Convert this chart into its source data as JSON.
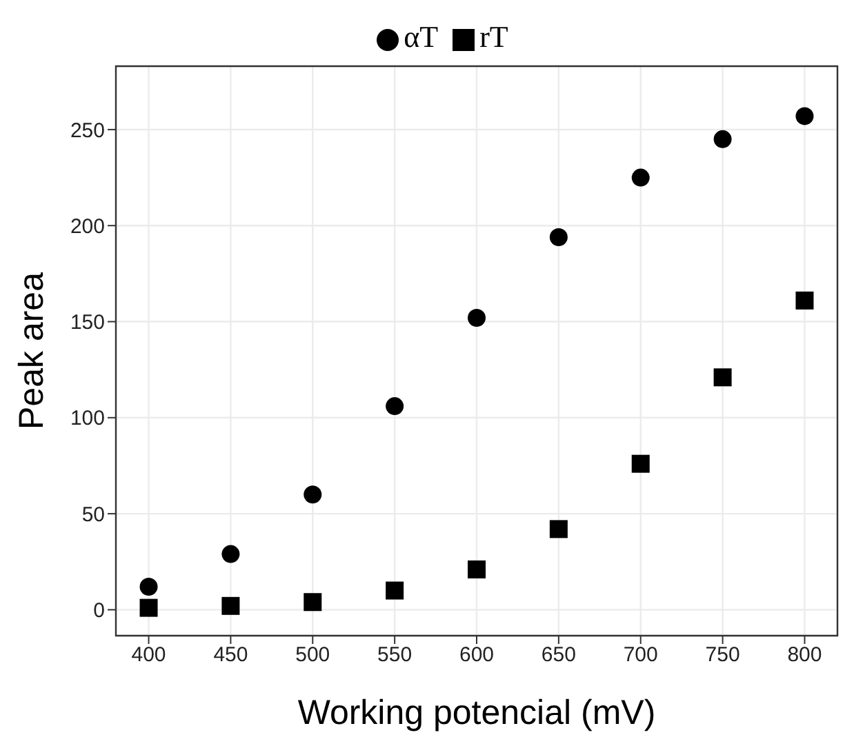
{
  "chart_data": {
    "type": "scatter",
    "xlabel": "Working potencial (mV)",
    "ylabel": "Peak area",
    "x": [
      400,
      450,
      500,
      550,
      600,
      650,
      700,
      750,
      800
    ],
    "series": [
      {
        "name": "αT",
        "color": "#000000",
        "marker": "circle",
        "values": [
          12,
          29,
          60,
          106,
          152,
          194,
          225,
          245,
          257
        ]
      },
      {
        "name": "rT",
        "color": "#000000",
        "marker": "square",
        "values": [
          1,
          2,
          4,
          10,
          21,
          42,
          76,
          121,
          161
        ]
      }
    ],
    "xlim": [
      380,
      820
    ],
    "xticks": [
      400,
      450,
      500,
      550,
      600,
      650,
      700,
      750,
      800
    ],
    "ylim": [
      -13.5,
      283
    ],
    "yticks": [
      0,
      50,
      100,
      150,
      200,
      250
    ],
    "grid": true,
    "legend": "top"
  }
}
